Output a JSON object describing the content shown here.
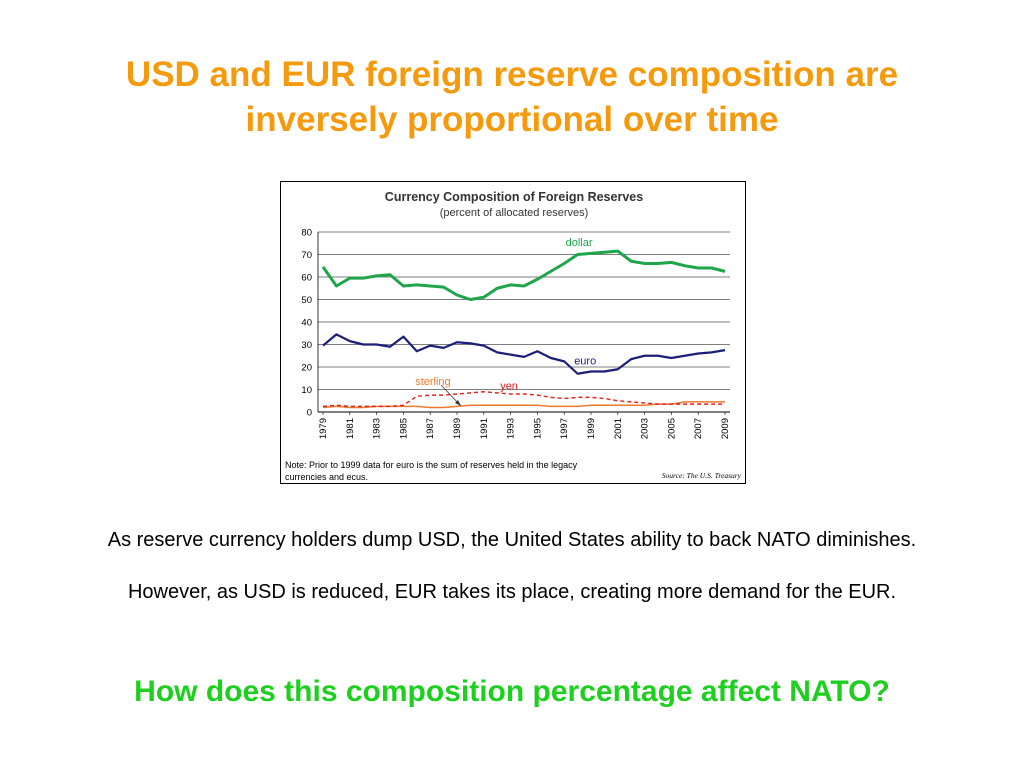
{
  "slide": {
    "title_line1": "USD and EUR foreign reserve composition are",
    "title_line2": "inversely proportional over time",
    "body_line1": "As reserve currency holders dump USD, the United States ability to back NATO diminishes.",
    "body_line2": "However, as USD is reduced, EUR takes its place, creating more demand for the EUR.",
    "question": "How does this composition percentage affect NATO?",
    "title_color": "#f59a0c",
    "question_color": "#1fcf1f"
  },
  "chart_data": {
    "type": "line",
    "title": "Currency Composition of Foreign Reserves",
    "subtitle": "(percent of allocated reserves)",
    "xlabel": "",
    "ylabel": "",
    "ylim": [
      0,
      80
    ],
    "y_ticks": [
      0,
      10,
      20,
      30,
      40,
      50,
      60,
      70,
      80
    ],
    "x_tick_labels": [
      "1979",
      "1981",
      "1983",
      "1985",
      "1987",
      "1989",
      "1991",
      "1993",
      "1995",
      "1997",
      "1999",
      "2001",
      "2003",
      "2005",
      "2007",
      "2009"
    ],
    "grid": true,
    "x": [
      1979,
      1980,
      1981,
      1982,
      1983,
      1984,
      1985,
      1986,
      1987,
      1988,
      1989,
      1990,
      1991,
      1992,
      1993,
      1994,
      1995,
      1996,
      1997,
      1998,
      1999,
      2000,
      2001,
      2002,
      2003,
      2004,
      2005,
      2006,
      2007,
      2008,
      2009
    ],
    "series": [
      {
        "name": "dollar",
        "color": "#1fa64a",
        "dash": "solid",
        "values": [
          64.5,
          56,
          59.5,
          59.5,
          60.5,
          61,
          56,
          56.5,
          56,
          55.5,
          52,
          50,
          51,
          55,
          56.5,
          56,
          59,
          62.5,
          66,
          70,
          70.5,
          71,
          71.5,
          67,
          66,
          66,
          66.5,
          65,
          64,
          64,
          62.5
        ]
      },
      {
        "name": "euro",
        "color": "#1c1f7a",
        "dash": "solid",
        "values": [
          29.5,
          34.5,
          31.5,
          30,
          30,
          29,
          33.5,
          27,
          29.5,
          28.5,
          31,
          30.5,
          29.5,
          26.5,
          25.5,
          24.5,
          27,
          24,
          22.5,
          17,
          18,
          18,
          19,
          23.5,
          25,
          25,
          24,
          25,
          26,
          26.5,
          27.5
        ]
      },
      {
        "name": "sterling",
        "color": "#f07a2c",
        "dash": "solid",
        "values": [
          2,
          2.5,
          2,
          2,
          2.5,
          2.5,
          2.5,
          2.5,
          2,
          2,
          2.5,
          3,
          3,
          3,
          3,
          3,
          3,
          2.5,
          2.5,
          2.5,
          3,
          3,
          3,
          3,
          3,
          3.5,
          3.5,
          4.5,
          4.5,
          4.5,
          4.5
        ]
      },
      {
        "name": "yen",
        "color": "#e02020",
        "dash": "dashed",
        "values": [
          2.5,
          3,
          2.5,
          2.5,
          2.5,
          2.5,
          3,
          7,
          7.5,
          7.5,
          8,
          8.5,
          9,
          8.5,
          8,
          8,
          7.5,
          6.5,
          6,
          6.5,
          6.5,
          6,
          5,
          4.5,
          4,
          3.5,
          3.5,
          3.5,
          3.5,
          3.5,
          3.5
        ]
      }
    ],
    "annotations": {
      "note_line1": "Note:  Prior to 1999 data for euro is the sum of reserves held in the legacy",
      "note_line2": "currencies and  ecus.",
      "source": "Source:  The U.S. Treasury"
    }
  }
}
